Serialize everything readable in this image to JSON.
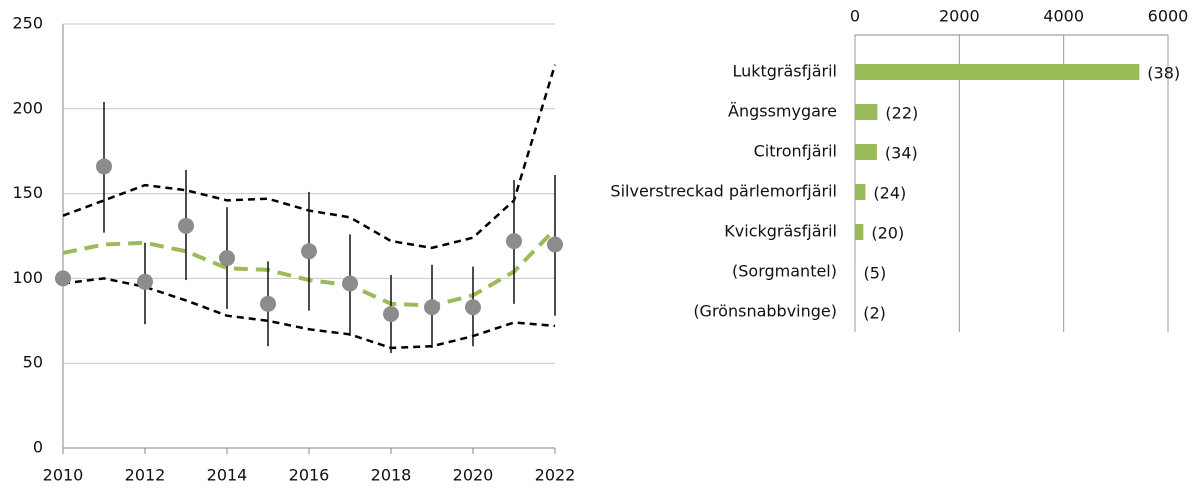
{
  "chart_data": [
    {
      "type": "line",
      "x": [
        2010,
        2011,
        2012,
        2013,
        2014,
        2015,
        2016,
        2017,
        2018,
        2019,
        2020,
        2021,
        2022
      ],
      "values": [
        100,
        166,
        98,
        131,
        112,
        85,
        116,
        97,
        79,
        83,
        83,
        122,
        120
      ],
      "error_low": [
        null,
        127,
        73,
        99,
        82,
        60,
        81,
        66,
        56,
        59,
        60,
        85,
        78
      ],
      "error_high": [
        null,
        204,
        121,
        164,
        142,
        110,
        151,
        126,
        102,
        108,
        107,
        158,
        161
      ],
      "trend": [
        115,
        120,
        121,
        116,
        106,
        105,
        99,
        96,
        85,
        84,
        90,
        104,
        129
      ],
      "trend_high": [
        137,
        146,
        155,
        152,
        146,
        147,
        140,
        136,
        122,
        118,
        124,
        146,
        226
      ],
      "trend_low": [
        97,
        100,
        95,
        87,
        78,
        75,
        70,
        67,
        59,
        60,
        66,
        74,
        72
      ],
      "color": "#8c8c8c",
      "trend_color": "#9bbb59",
      "band_color": "#000000",
      "xlim": [
        2010,
        2022
      ],
      "xticks": [
        2010,
        2012,
        2014,
        2016,
        2018,
        2020,
        2022
      ],
      "ylim": [
        0,
        250
      ],
      "yticks": [
        0,
        50,
        100,
        150,
        200,
        250
      ],
      "grid": true
    },
    {
      "type": "bar",
      "categories": [
        "Luktgräsfjäril",
        "Ängssmygare",
        "Citronfjäril",
        "Silverstreckad pärlemorfjäril",
        "Kvickgräsfjäril",
        "(Sorgmantel)",
        "(Grönsnabbvinge)"
      ],
      "values": [
        5450,
        430,
        420,
        200,
        160,
        10,
        5
      ],
      "annotations": [
        "(38)",
        "(22)",
        "(34)",
        "(24)",
        "(20)",
        "(5)",
        "(2)"
      ],
      "color": "#9bbb59",
      "xlim": [
        0,
        6000
      ],
      "xticks": [
        0,
        2000,
        4000,
        6000
      ],
      "grid": true
    }
  ]
}
